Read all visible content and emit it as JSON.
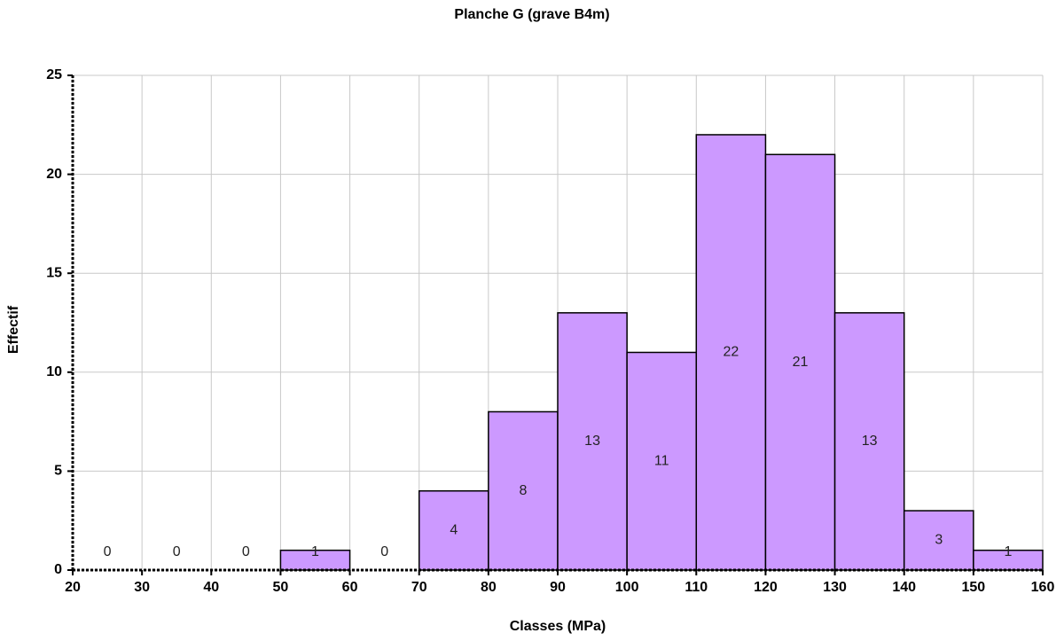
{
  "chart_data": {
    "type": "histogram",
    "title": "Planche G (grave B4m)",
    "x_label": "Classes (MPa)",
    "y_label": "Effectif",
    "bins": [
      20,
      30,
      40,
      50,
      60,
      70,
      80,
      90,
      100,
      110,
      120,
      130,
      140,
      150,
      160
    ],
    "values": [
      0,
      0,
      0,
      1,
      0,
      4,
      8,
      13,
      11,
      22,
      21,
      13,
      3,
      1
    ],
    "color": "#cc99ff",
    "xlim": [
      20,
      160
    ],
    "xticks": [
      20,
      30,
      40,
      50,
      60,
      70,
      80,
      90,
      100,
      110,
      120,
      130,
      140,
      150,
      160
    ],
    "ylim": [
      0,
      25
    ],
    "yticks": [
      0,
      5,
      10,
      15,
      20,
      25
    ],
    "grid": true
  }
}
